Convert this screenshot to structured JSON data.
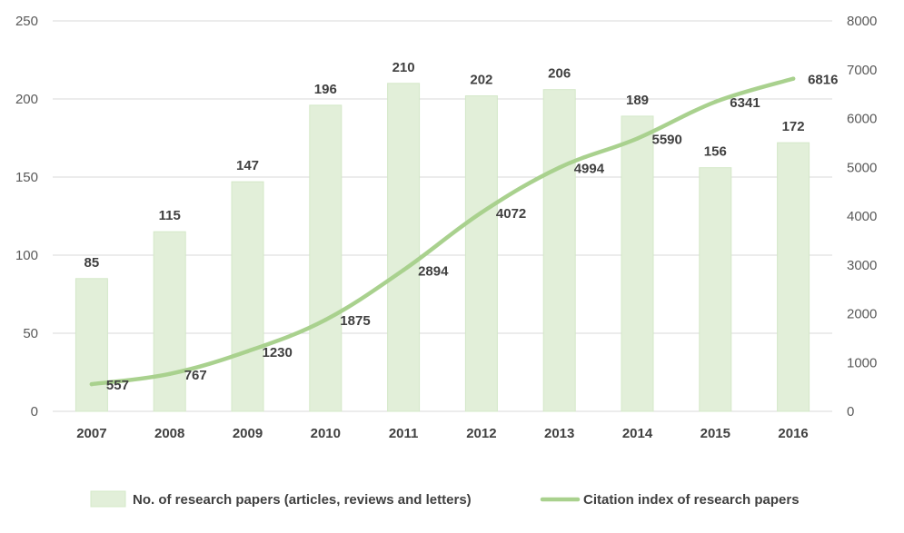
{
  "chart_data": {
    "type": "bar",
    "categories": [
      "2007",
      "2008",
      "2009",
      "2010",
      "2011",
      "2012",
      "2013",
      "2014",
      "2015",
      "2016"
    ],
    "series": [
      {
        "name": "No. of research papers (articles, reviews and letters)",
        "type": "bar",
        "axis": "left",
        "color": "#e2efd9",
        "border_color": "#d4e8c8",
        "values": [
          85,
          115,
          147,
          196,
          210,
          202,
          206,
          189,
          156,
          172
        ]
      },
      {
        "name": "Citation index of research papers",
        "type": "line",
        "axis": "right",
        "color": "#a9d18e",
        "values": [
          557,
          767,
          1230,
          1875,
          2894,
          4072,
          4994,
          5590,
          6341,
          6816
        ]
      }
    ],
    "y_left": {
      "min": 0,
      "max": 250,
      "ticks": [
        0,
        50,
        100,
        150,
        200,
        250
      ]
    },
    "y_right": {
      "min": 0,
      "max": 8000,
      "ticks": [
        0,
        1000,
        2000,
        3000,
        4000,
        5000,
        6000,
        7000,
        8000
      ]
    },
    "grid": true,
    "grid_color": "#d9d9d9",
    "legend_position": "bottom",
    "data_labels": true
  }
}
